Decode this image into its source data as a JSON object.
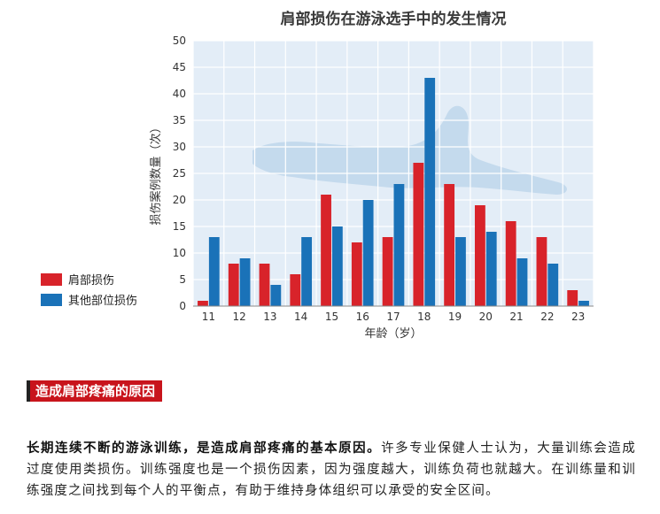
{
  "colors": {
    "shoulder": "#d8232a",
    "other": "#1a72b8",
    "plot_bg": "#e3edf7",
    "grid": "#ffffff",
    "heading_bg": "#c8141c"
  },
  "chart_data": {
    "type": "bar",
    "title": "肩部损伤在游泳选手中的发生情况",
    "xlabel": "年龄（岁）",
    "ylabel": "损伤案例数量（次）",
    "ylim": [
      0,
      50
    ],
    "yticks": [
      0,
      5,
      10,
      15,
      20,
      25,
      30,
      35,
      40,
      45,
      50
    ],
    "categories": [
      "11",
      "12",
      "13",
      "14",
      "15",
      "16",
      "17",
      "18",
      "19",
      "20",
      "21",
      "22",
      "23"
    ],
    "series": [
      {
        "name": "肩部损伤",
        "color": "#d8232a",
        "values": [
          1,
          8,
          8,
          6,
          21,
          12,
          13,
          27,
          23,
          19,
          16,
          13,
          3
        ]
      },
      {
        "name": "其他部位损伤",
        "color": "#1a72b8",
        "values": [
          13,
          9,
          4,
          13,
          15,
          20,
          23,
          43,
          13,
          14,
          9,
          8,
          1
        ]
      }
    ],
    "grid": true,
    "legend_position": "left"
  },
  "article": {
    "heading": "造成肩部疼痛的原因",
    "lead": "长期连续不断的游泳训练，是造成肩部疼痛的基本原因。",
    "body": "许多专业保健人士认为，大量训练会造成过度使用类损伤。训练强度也是一个损伤因素，因为强度越大，训练负荷也就越大。在训练量和训练强度之间找到每个人的平衡点，有助于维持身体组织可以承受的安全区间。"
  }
}
